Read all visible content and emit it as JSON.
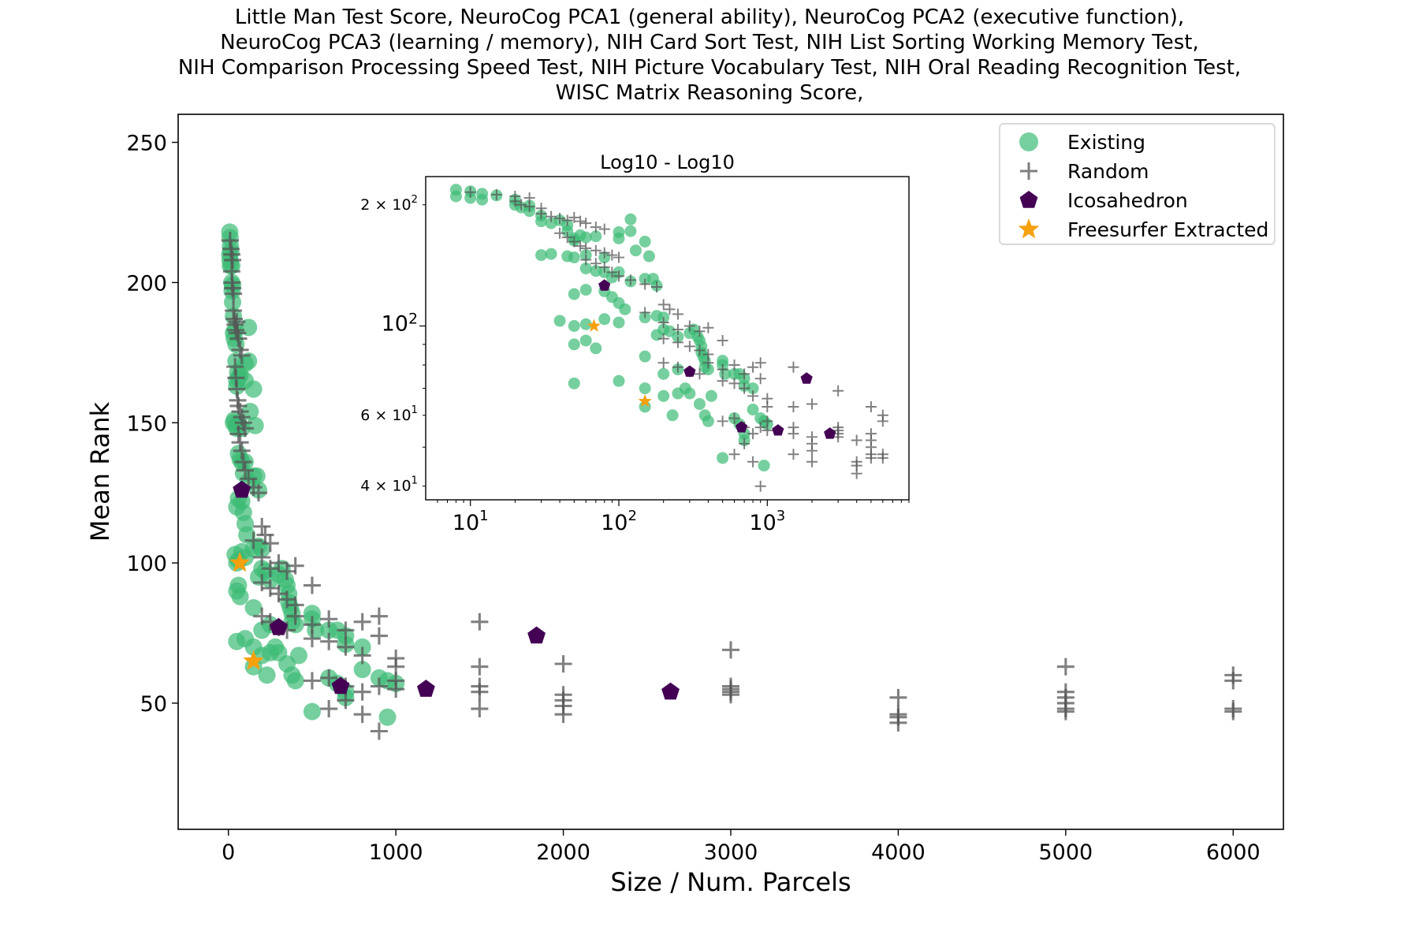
{
  "figure": {
    "title_lines": [
      "Little Man Test Score, NeuroCog PCA1 (general ability), NeuroCog PCA2 (executive function),",
      "NeuroCog PCA3 (learning / memory), NIH Card Sort Test, NIH List Sorting Working Memory Test,",
      "NIH Comparison Processing Speed Test, NIH Picture Vocabulary Test, NIH Oral Reading Recognition Test,",
      "WISC Matrix Reasoning Score,"
    ]
  },
  "colors": {
    "existing": "#3cbb75",
    "random": "#555555",
    "icosahedron": "#440154",
    "freesurfer": "#f5a00f"
  },
  "chart_data": [
    {
      "type": "scatter",
      "title": "",
      "xlabel": "Size / Num. Parcels",
      "ylabel": "Mean Rank",
      "xlim": [
        -300,
        6300
      ],
      "ylim": [
        5,
        260
      ],
      "xticks": [
        0,
        1000,
        2000,
        3000,
        4000,
        5000,
        6000
      ],
      "xtick_labels": [
        "0",
        "1000",
        "2000",
        "3000",
        "4000",
        "5000",
        "6000"
      ],
      "yticks": [
        50,
        100,
        150,
        200,
        250
      ],
      "ytick_labels": [
        "50",
        "100",
        "150",
        "200",
        "250"
      ],
      "grid": false,
      "legend": {
        "position": "top-right",
        "entries": [
          "Existing",
          "Random",
          "Icosahedron",
          "Freesurfer Extracted"
        ]
      },
      "series": [
        {
          "name": "Existing",
          "marker": "circle",
          "color": "#3cbb75",
          "points": [
            [
              8,
              218
            ],
            [
              10,
              216
            ],
            [
              12,
              213
            ],
            [
              8,
              210
            ],
            [
              10,
              208
            ],
            [
              12,
              206
            ],
            [
              15,
              211
            ],
            [
              20,
              206
            ],
            [
              20,
              200
            ],
            [
              22,
              197
            ],
            [
              25,
              199
            ],
            [
              25,
              193
            ],
            [
              30,
              188
            ],
            [
              30,
              182
            ],
            [
              35,
              180
            ],
            [
              40,
              183
            ],
            [
              45,
              178
            ],
            [
              45,
              172
            ],
            [
              50,
              165
            ],
            [
              50,
              163
            ],
            [
              55,
              168
            ],
            [
              60,
              166
            ],
            [
              70,
              167
            ],
            [
              30,
              150
            ],
            [
              35,
              151
            ],
            [
              45,
              149
            ],
            [
              50,
              148
            ],
            [
              60,
              150
            ],
            [
              80,
              148
            ],
            [
              100,
              171
            ],
            [
              100,
              165
            ],
            [
              120,
              184
            ],
            [
              120,
              172
            ],
            [
              150,
              162
            ],
            [
              160,
              149
            ],
            [
              130,
              154
            ],
            [
              60,
              139
            ],
            [
              70,
              137
            ],
            [
              80,
              136
            ],
            [
              90,
              132
            ],
            [
              100,
              136
            ],
            [
              120,
              129
            ],
            [
              150,
              131
            ],
            [
              170,
              131
            ],
            [
              180,
              126
            ],
            [
              50,
              120
            ],
            [
              60,
              123
            ],
            [
              80,
              122
            ],
            [
              90,
              118
            ],
            [
              100,
              114
            ],
            [
              110,
              110
            ],
            [
              150,
              105
            ],
            [
              180,
              106
            ],
            [
              200,
              105
            ],
            [
              40,
              103
            ],
            [
              50,
              100
            ],
            [
              60,
              101
            ],
            [
              80,
              104
            ],
            [
              100,
              102
            ],
            [
              50,
              90
            ],
            [
              60,
              92
            ],
            [
              70,
              88
            ],
            [
              150,
              84
            ],
            [
              180,
              95
            ],
            [
              200,
              98
            ],
            [
              220,
              97
            ],
            [
              250,
              94
            ],
            [
              300,
              96
            ],
            [
              320,
              98
            ],
            [
              340,
              94
            ],
            [
              350,
              92
            ],
            [
              360,
              89
            ],
            [
              360,
              86
            ],
            [
              370,
              84
            ],
            [
              380,
              82
            ],
            [
              380,
              79
            ],
            [
              400,
              78
            ],
            [
              500,
              82
            ],
            [
              500,
              80
            ],
            [
              520,
              76
            ],
            [
              600,
              76
            ],
            [
              650,
              76
            ],
            [
              700,
              74
            ],
            [
              700,
              71
            ],
            [
              800,
              70
            ],
            [
              50,
              72
            ],
            [
              100,
              73
            ],
            [
              150,
              70
            ],
            [
              200,
              76
            ],
            [
              250,
              78
            ],
            [
              150,
              63
            ],
            [
              200,
              67
            ],
            [
              250,
              68
            ],
            [
              300,
              68
            ],
            [
              350,
              64
            ],
            [
              380,
              60
            ],
            [
              400,
              58
            ],
            [
              420,
              67
            ],
            [
              230,
              60
            ],
            [
              280,
              70
            ],
            [
              600,
              59
            ],
            [
              650,
              57
            ],
            [
              700,
              54
            ],
            [
              800,
              62
            ],
            [
              900,
              59
            ],
            [
              950,
              58
            ],
            [
              500,
              47
            ],
            [
              700,
              52
            ],
            [
              950,
              45
            ],
            [
              1000,
              57
            ]
          ]
        },
        {
          "name": "Random",
          "marker": "plus",
          "color": "#555555",
          "points": [
            [
              10,
              215
            ],
            [
              15,
              212
            ],
            [
              20,
              210
            ],
            [
              25,
              208
            ],
            [
              20,
              204
            ],
            [
              22,
              200
            ],
            [
              25,
              198
            ],
            [
              30,
              196
            ],
            [
              30,
              190
            ],
            [
              35,
              187
            ],
            [
              40,
              185
            ],
            [
              45,
              183
            ],
            [
              50,
              186
            ],
            [
              55,
              182
            ],
            [
              60,
              180
            ],
            [
              70,
              176
            ],
            [
              80,
              174
            ],
            [
              40,
              170
            ],
            [
              45,
              166
            ],
            [
              50,
              162
            ],
            [
              55,
              158
            ],
            [
              60,
              156
            ],
            [
              70,
              154
            ],
            [
              80,
              152
            ],
            [
              90,
              150
            ],
            [
              100,
              148
            ],
            [
              60,
              146
            ],
            [
              70,
              143
            ],
            [
              80,
              140
            ],
            [
              90,
              136
            ],
            [
              100,
              133
            ],
            [
              120,
              130
            ],
            [
              150,
              127
            ],
            [
              180,
              125
            ],
            [
              200,
              113
            ],
            [
              220,
              110
            ],
            [
              250,
              107
            ],
            [
              150,
              108
            ],
            [
              200,
              102
            ],
            [
              250,
              98
            ],
            [
              300,
              100
            ],
            [
              350,
              97
            ],
            [
              400,
              99
            ],
            [
              500,
              92
            ],
            [
              200,
              93
            ],
            [
              250,
              91
            ],
            [
              300,
              89
            ],
            [
              350,
              87
            ],
            [
              400,
              85
            ],
            [
              200,
              81
            ],
            [
              250,
              79
            ],
            [
              300,
              77
            ],
            [
              350,
              76
            ],
            [
              400,
              81
            ],
            [
              500,
              78
            ],
            [
              600,
              80
            ],
            [
              700,
              76
            ],
            [
              800,
              79
            ],
            [
              900,
              81
            ],
            [
              1000,
              66
            ],
            [
              1000,
              63
            ],
            [
              500,
              73
            ],
            [
              600,
              72
            ],
            [
              700,
              70
            ],
            [
              800,
              67
            ],
            [
              900,
              74
            ],
            [
              1000,
              58
            ],
            [
              500,
              58
            ],
            [
              600,
              59
            ],
            [
              700,
              56
            ],
            [
              800,
              54
            ],
            [
              900,
              56
            ],
            [
              1000,
              55
            ],
            [
              600,
              48
            ],
            [
              700,
              51
            ],
            [
              800,
              46
            ],
            [
              900,
              40
            ],
            [
              1500,
              79
            ],
            [
              1500,
              63
            ],
            [
              1500,
              56
            ],
            [
              1500,
              54
            ],
            [
              1500,
              48
            ],
            [
              2000,
              64
            ],
            [
              2000,
              53
            ],
            [
              2000,
              51
            ],
            [
              2000,
              49
            ],
            [
              2000,
              46
            ],
            [
              3000,
              69
            ],
            [
              3000,
              56
            ],
            [
              3000,
              55
            ],
            [
              3000,
              54
            ],
            [
              3000,
              53
            ],
            [
              4000,
              52
            ],
            [
              4000,
              46
            ],
            [
              4000,
              45
            ],
            [
              4000,
              43
            ],
            [
              5000,
              63
            ],
            [
              5000,
              54
            ],
            [
              5000,
              52
            ],
            [
              5000,
              50
            ],
            [
              5000,
              48
            ],
            [
              5000,
              47
            ],
            [
              6000,
              60
            ],
            [
              6000,
              58
            ],
            [
              6000,
              48
            ],
            [
              6000,
              47
            ]
          ]
        },
        {
          "name": "Icosahedron",
          "marker": "pentagon",
          "color": "#440154",
          "points": [
            [
              80,
              126
            ],
            [
              300,
              77
            ],
            [
              670,
              56
            ],
            [
              1180,
              55
            ],
            [
              1840,
              74
            ],
            [
              2640,
              54
            ]
          ]
        },
        {
          "name": "Freesurfer Extracted",
          "marker": "star",
          "color": "#f5a00f",
          "points": [
            [
              68,
              100
            ],
            [
              150,
              65
            ]
          ]
        }
      ]
    },
    {
      "type": "scatter",
      "title": "Log10 - Log10",
      "xscale": "log10",
      "yscale": "log10",
      "xlim": [
        5,
        9000
      ],
      "ylim": [
        37,
        235
      ],
      "xtick_labels": [
        "10^1",
        "10^2",
        "10^3"
      ],
      "ytick_labels": [
        "4 × 10^1",
        "6 × 10^1",
        "10^2",
        "2 × 10^2"
      ],
      "series_ref": "same data as main chart"
    }
  ],
  "legend_labels": [
    "Existing",
    "Random",
    "Icosahedron",
    "Freesurfer Extracted"
  ]
}
